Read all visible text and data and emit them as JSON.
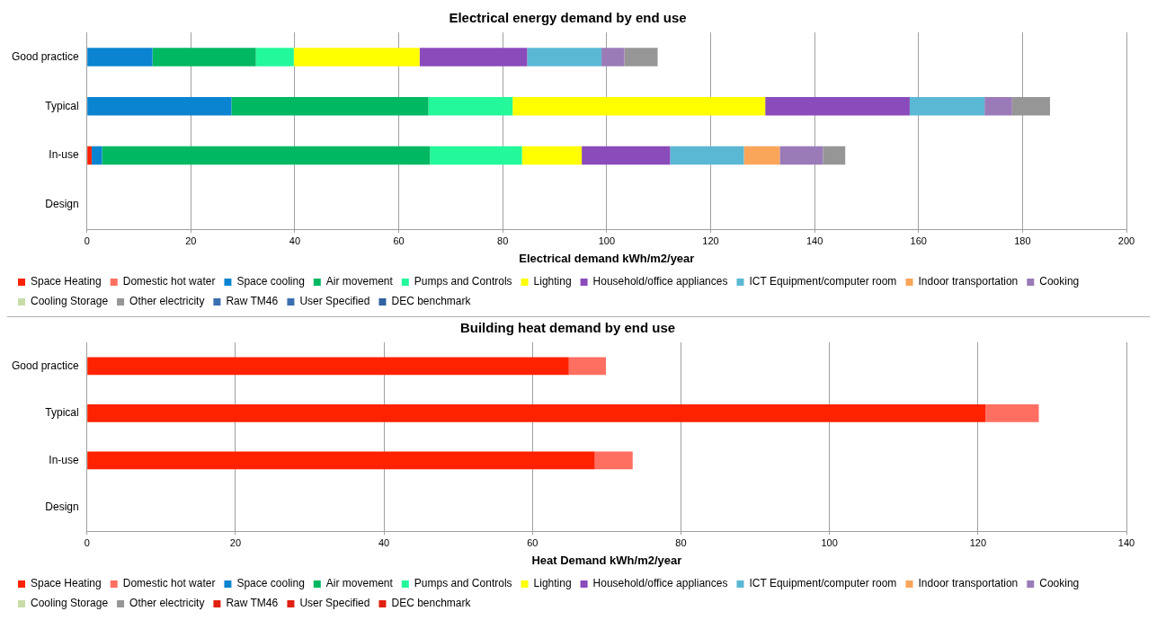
{
  "chart_data": [
    {
      "type": "bar",
      "orientation": "horizontal",
      "stacked": true,
      "title": "Electrical energy demand by end use",
      "xlabel": "Electrical demand kWh/m2/year",
      "categories": [
        "Good practice",
        "Typical",
        "In-use",
        "Design"
      ],
      "xlim": [
        0,
        200
      ],
      "xticks": [
        0,
        20,
        40,
        60,
        80,
        100,
        120,
        140,
        160,
        180,
        200
      ],
      "grid": "x",
      "legend": "bottom",
      "series": [
        {
          "name": "Space Heating",
          "color": "#ff2200",
          "values": [
            null,
            null,
            0.9,
            null
          ]
        },
        {
          "name": "Domestic hot water",
          "color": "#ff6f61",
          "values": [
            null,
            null,
            null,
            null
          ]
        },
        {
          "name": "Space cooling",
          "color": "#0a84d0",
          "values": [
            12.6,
            27.8,
            2.0,
            null
          ]
        },
        {
          "name": "Air movement",
          "color": "#00b862",
          "values": [
            19.9,
            37.9,
            63.1,
            null
          ]
        },
        {
          "name": "Pumps and Controls",
          "color": "#23f89a",
          "values": [
            7.3,
            16.2,
            17.7,
            null
          ]
        },
        {
          "name": "Lighting",
          "color": "#ffff00",
          "values": [
            24.2,
            48.6,
            11.5,
            null
          ]
        },
        {
          "name": "Household/office appliances",
          "color": "#8a4bbb",
          "values": [
            20.7,
            27.8,
            17.0,
            null
          ]
        },
        {
          "name": "ICT Equipment/computer room",
          "color": "#5bb8d4",
          "values": [
            14.3,
            14.4,
            14.2,
            null
          ]
        },
        {
          "name": "Indoor transportation",
          "color": "#f9a65a",
          "values": [
            null,
            null,
            6.9,
            null
          ]
        },
        {
          "name": "Cooking",
          "color": "#9a7bb7",
          "values": [
            4.4,
            5.3,
            8.3,
            null
          ]
        },
        {
          "name": "Cooling Storage",
          "color": "#c8dca8",
          "values": [
            null,
            null,
            null,
            null
          ]
        },
        {
          "name": "Other electricity",
          "color": "#969696",
          "values": [
            6.4,
            7.3,
            4.3,
            null
          ]
        },
        {
          "name": "Raw TM46",
          "color": "#3a6fb0",
          "values": [
            null,
            null,
            null,
            null
          ]
        },
        {
          "name": "User Specified",
          "color": "#3a6fb0",
          "values": [
            null,
            null,
            null,
            null
          ]
        },
        {
          "name": "DEC benchmark",
          "color": "#2f62a0",
          "values": [
            null,
            null,
            null,
            null
          ]
        }
      ]
    },
    {
      "type": "bar",
      "orientation": "horizontal",
      "stacked": true,
      "title": "Building heat demand by end use",
      "xlabel": "Heat Demand kWh/m2/year",
      "categories": [
        "Good practice",
        "Typical",
        "In-use",
        "Design"
      ],
      "xlim": [
        0,
        140
      ],
      "xticks": [
        0,
        20,
        40,
        60,
        80,
        100,
        120,
        140
      ],
      "grid": "x",
      "legend": "bottom",
      "series": [
        {
          "name": "Space Heating",
          "color": "#ff2200",
          "values": [
            64.9,
            121.0,
            68.4,
            null
          ]
        },
        {
          "name": "Domestic hot water",
          "color": "#ff6f61",
          "values": [
            5.0,
            7.2,
            5.1,
            null
          ]
        },
        {
          "name": "Space cooling",
          "color": "#0a84d0",
          "values": [
            null,
            null,
            null,
            null
          ]
        },
        {
          "name": "Air movement",
          "color": "#00b862",
          "values": [
            null,
            null,
            null,
            null
          ]
        },
        {
          "name": "Pumps and Controls",
          "color": "#23f89a",
          "values": [
            null,
            null,
            null,
            null
          ]
        },
        {
          "name": "Lighting",
          "color": "#ffff00",
          "values": [
            null,
            null,
            null,
            null
          ]
        },
        {
          "name": "Household/office appliances",
          "color": "#8a4bbb",
          "values": [
            null,
            null,
            null,
            null
          ]
        },
        {
          "name": "ICT Equipment/computer room",
          "color": "#5bb8d4",
          "values": [
            null,
            null,
            null,
            null
          ]
        },
        {
          "name": "Indoor transportation",
          "color": "#f9a65a",
          "values": [
            null,
            null,
            null,
            null
          ]
        },
        {
          "name": "Cooking",
          "color": "#9a7bb7",
          "values": [
            null,
            null,
            null,
            null
          ]
        },
        {
          "name": "Cooling Storage",
          "color": "#c8dca8",
          "values": [
            null,
            null,
            null,
            null
          ]
        },
        {
          "name": "Other electricity",
          "color": "#969696",
          "values": [
            null,
            null,
            null,
            null
          ]
        },
        {
          "name": "Raw TM46",
          "color": "#e02010",
          "values": [
            null,
            null,
            null,
            null
          ]
        },
        {
          "name": "User Specified",
          "color": "#e02010",
          "values": [
            null,
            null,
            null,
            null
          ]
        },
        {
          "name": "DEC benchmark",
          "color": "#e02010",
          "values": [
            null,
            null,
            null,
            null
          ]
        }
      ]
    }
  ]
}
